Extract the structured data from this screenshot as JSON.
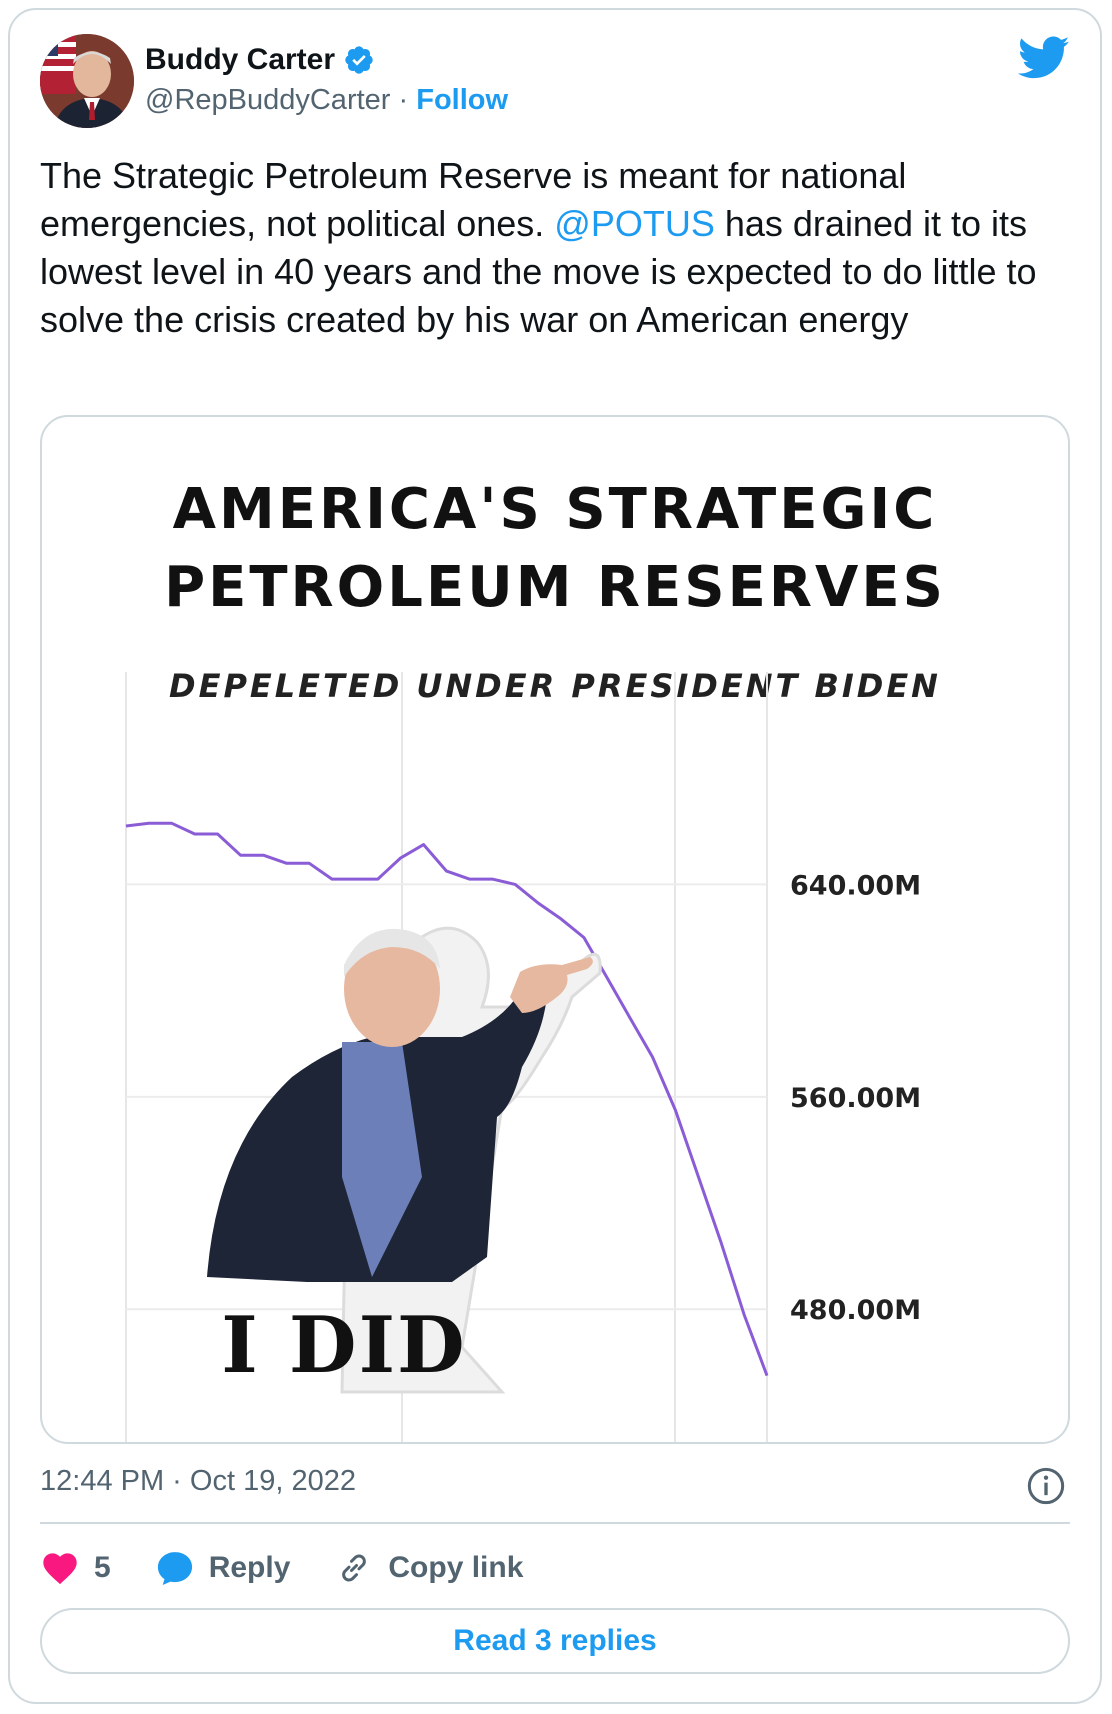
{
  "author": {
    "name": "Buddy Carter",
    "handle": "@RepBuddyCarter",
    "separator": "·",
    "follow_label": "Follow"
  },
  "tweet": {
    "text_1": "The Strategic Petroleum Reserve is meant for national emergencies, not political ones. ",
    "mention": "@POTUS",
    "text_2": " has drained it to its lowest level in 40 years and the move is expected to do little to solve the crisis created by his war on American energy"
  },
  "image": {
    "title_line1": "AMERICA'S STRATEGIC",
    "title_line2": "PETROLEUM RESERVES",
    "subtitle": "DEPELETED UNDER PRESIDENT BIDEN",
    "meme_caption": "I DID"
  },
  "chart_data": {
    "type": "line",
    "title": "AMERICA'S STRATEGIC PETROLEUM RESERVES",
    "subtitle": "DEPELETED UNDER PRESIDENT BIDEN",
    "xlabel": "",
    "ylabel": "",
    "ytick_values": [
      640,
      560,
      480
    ],
    "ytick_labels": [
      "640.00M",
      "560.00M",
      "480.00M"
    ],
    "ylim": [
      430,
      720
    ],
    "grid": true,
    "x": [
      0,
      1,
      2,
      3,
      4,
      5,
      6,
      7,
      8,
      9,
      10,
      11,
      12,
      13,
      14,
      15,
      16,
      17,
      18,
      19,
      20,
      21,
      22,
      23,
      24,
      25,
      26,
      27,
      28
    ],
    "y": [
      662,
      663,
      663,
      659,
      659,
      651,
      651,
      648,
      648,
      642,
      642,
      642,
      650,
      655,
      645,
      642,
      642,
      640,
      633,
      627,
      620,
      605,
      590,
      575,
      555,
      530,
      505,
      478,
      455
    ]
  },
  "timestamp": "12:44 PM · Oct 19, 2022",
  "actions": {
    "like_count": "5",
    "reply_label": "Reply",
    "copy_label": "Copy link"
  },
  "read_replies_label": "Read 3 replies",
  "colors": {
    "accent": "#1d9bf0",
    "like": "#f91880",
    "line": "#8a5cd6",
    "border": "#cfd9de",
    "muted": "#536471"
  },
  "icons": [
    "verified-badge-icon",
    "twitter-bird-icon",
    "info-icon",
    "heart-icon",
    "reply-bubble-icon",
    "link-icon"
  ]
}
